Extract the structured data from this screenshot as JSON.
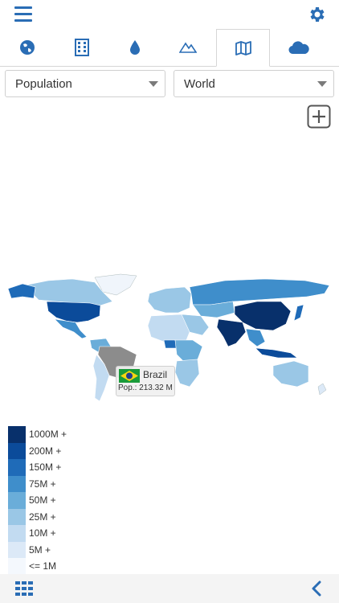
{
  "toolbar": {
    "menu_icon": "hamburger-menu-icon",
    "settings_icon": "gear-icon",
    "accent_color": "#2a6db5"
  },
  "tabs": [
    {
      "icon": "globe-icon",
      "active": false
    },
    {
      "icon": "building-icon",
      "active": false
    },
    {
      "icon": "water-drop-icon",
      "active": false
    },
    {
      "icon": "mountains-icon",
      "active": false
    },
    {
      "icon": "map-icon",
      "active": true
    },
    {
      "icon": "cloud-icon",
      "active": false
    }
  ],
  "filters": {
    "metric": "Population",
    "region": "World"
  },
  "map": {
    "zoom_icon": "plus-box-icon",
    "tooltip": {
      "flag_icon": "brazil-flag-icon",
      "country": "Brazil",
      "value": "Pop.: 213.32 M"
    }
  },
  "legend": [
    {
      "label": "1000M +",
      "color": "#08306b"
    },
    {
      "label": "200M +",
      "color": "#0b4b9a"
    },
    {
      "label": "150M +",
      "color": "#1f6bb8"
    },
    {
      "label": "75M +",
      "color": "#3f8ecb"
    },
    {
      "label": "50M +",
      "color": "#6aadd9"
    },
    {
      "label": "25M +",
      "color": "#9ac7e6"
    },
    {
      "label": "10M +",
      "color": "#c2dbf1"
    },
    {
      "label": "5M +",
      "color": "#dce9f7"
    },
    {
      "label": "<= 1M",
      "color": "#f4f8fd"
    }
  ],
  "bottombar": {
    "grid_icon": "grid-icon",
    "back_icon": "chevron-left-icon"
  }
}
